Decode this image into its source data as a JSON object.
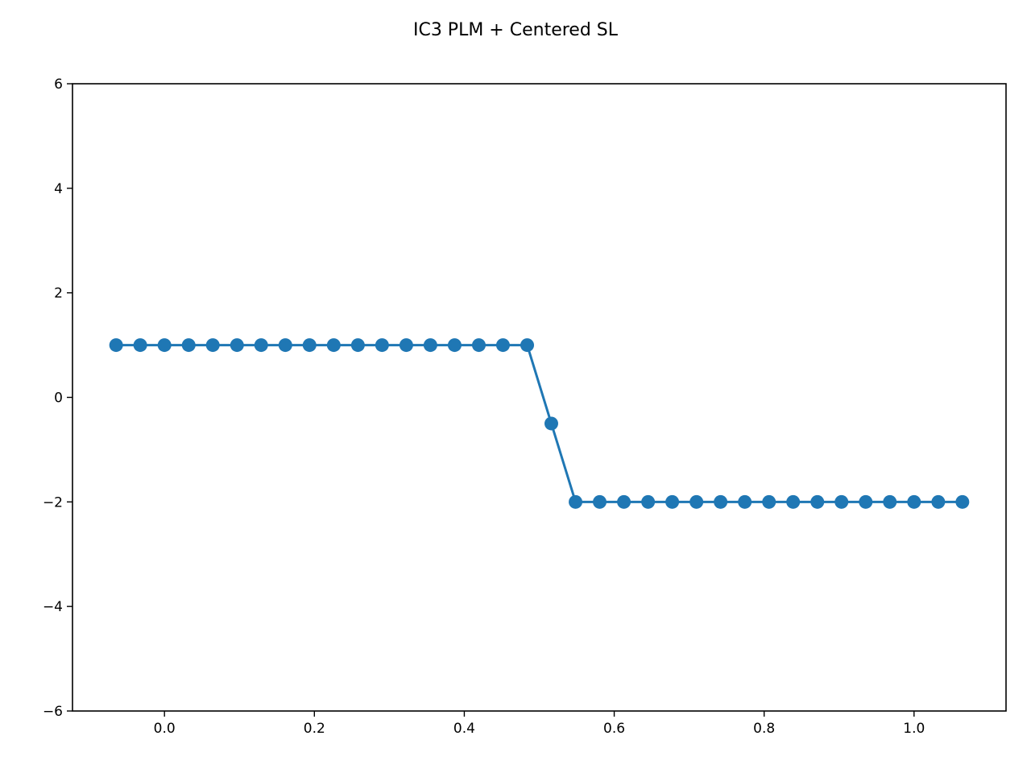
{
  "chart_data": {
    "type": "line",
    "title": "IC3 PLM + Centered SL",
    "xlabel": "",
    "ylabel": "",
    "xlim": [
      -0.1227,
      1.1227
    ],
    "ylim": [
      -6,
      6
    ],
    "xticks": [
      0.0,
      0.2,
      0.4,
      0.6,
      0.8,
      1.0
    ],
    "xtick_labels": [
      "0.0",
      "0.2",
      "0.4",
      "0.6",
      "0.8",
      "1.0"
    ],
    "yticks": [
      -6,
      -4,
      -2,
      0,
      2,
      4,
      6
    ],
    "ytick_labels": [
      "−6",
      "−4",
      "−2",
      "0",
      "2",
      "4",
      "6"
    ],
    "grid": false,
    "color": "#1f77b4",
    "marker": "circle",
    "series": [
      {
        "x": [
          -0.0645,
          -0.0323,
          0.0,
          0.0323,
          0.0645,
          0.0968,
          0.129,
          0.1613,
          0.1935,
          0.2258,
          0.2581,
          0.2903,
          0.3226,
          0.3548,
          0.3871,
          0.4194,
          0.4516,
          0.4839,
          0.5161,
          0.5484,
          0.5806,
          0.6129,
          0.6452,
          0.6774,
          0.7097,
          0.7419,
          0.7742,
          0.8065,
          0.8387,
          0.871,
          0.9032,
          0.9355,
          0.9677,
          1.0,
          1.0323,
          1.0645
        ],
        "y": [
          1,
          1,
          1,
          1,
          1,
          1,
          1,
          1,
          1,
          1,
          1,
          1,
          1,
          1,
          1,
          1,
          1,
          1,
          -0.5,
          -2,
          -2,
          -2,
          -2,
          -2,
          -2,
          -2,
          -2,
          -2,
          -2,
          -2,
          -2,
          -2,
          -2,
          -2,
          -2,
          -2
        ]
      }
    ]
  }
}
